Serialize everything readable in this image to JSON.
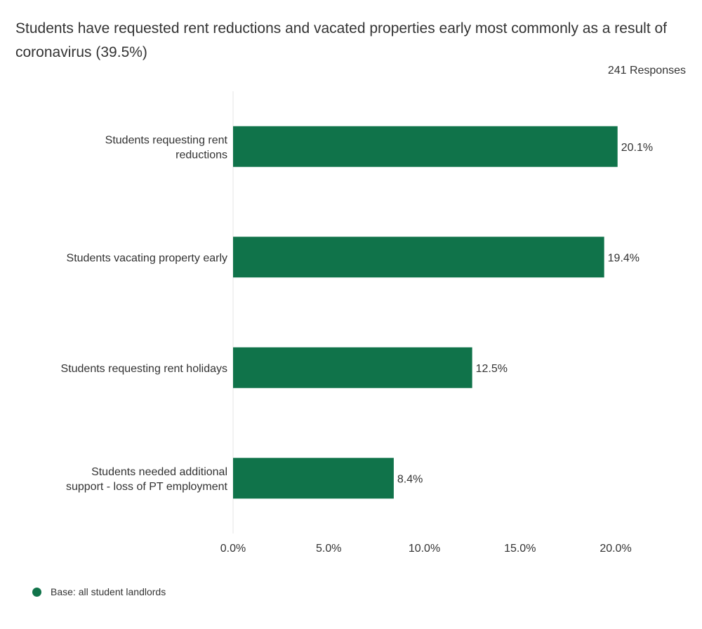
{
  "title": "Students have requested rent reductions and vacated properties early most commonly as a result of coronavirus (39.5%)",
  "responses": "241 Responses",
  "legend": {
    "label": "Base: all student landlords"
  },
  "colors": {
    "bar": "#10734a",
    "text": "#333333",
    "axis": "#e6e6e6"
  },
  "chart_data": {
    "type": "bar",
    "orientation": "horizontal",
    "categories": [
      [
        "Students requesting rent",
        "reductions"
      ],
      [
        "Students vacating property early"
      ],
      [
        "Students requesting rent holidays"
      ],
      [
        "Students needed additional",
        "support - loss of PT employment"
      ]
    ],
    "series": [
      {
        "name": "Base: all student landlords",
        "values": [
          20.1,
          19.4,
          12.5,
          8.4
        ],
        "labels": [
          "20.1%",
          "19.4%",
          "12.5%",
          "8.4%"
        ]
      }
    ],
    "xlim": [
      0,
      20
    ],
    "xticks": [
      0,
      5,
      10,
      15,
      20
    ],
    "xtick_labels": [
      "0.0%",
      "5.0%",
      "10.0%",
      "15.0%",
      "20.0%"
    ],
    "grid": false,
    "legend_position": "bottom-left"
  }
}
